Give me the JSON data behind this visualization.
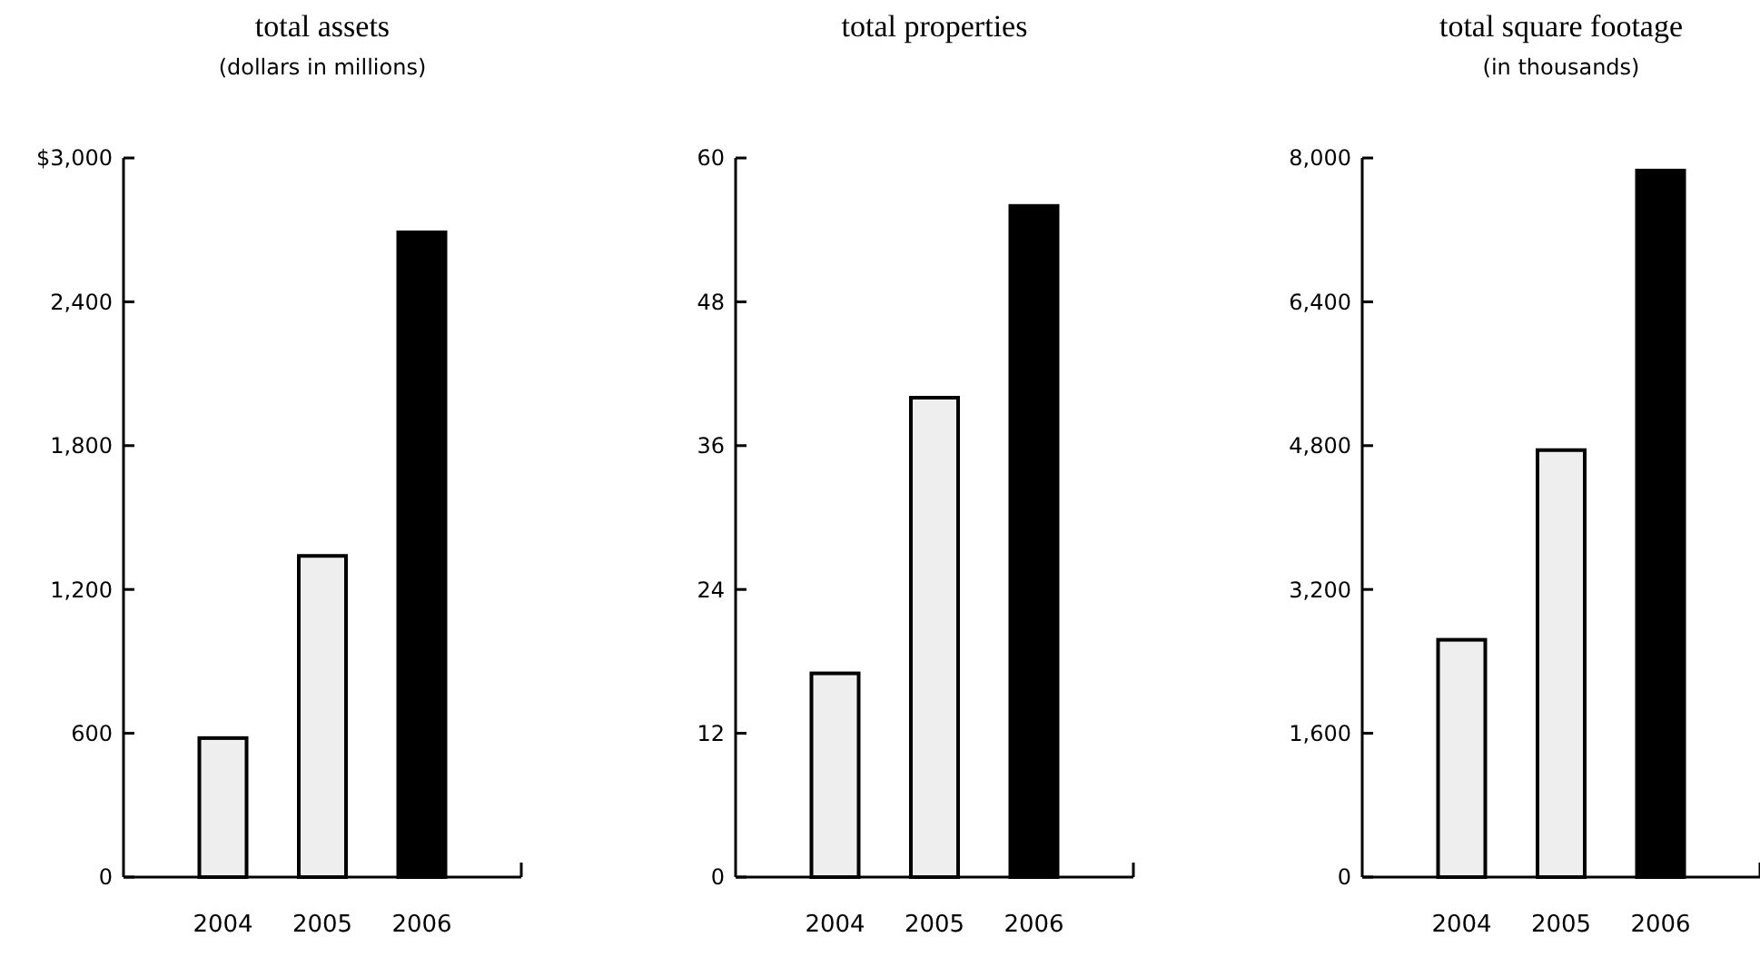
{
  "chart_data": [
    {
      "type": "bar",
      "title": "total assets",
      "subtitle": "(dollars in millions)",
      "categories": [
        "2004",
        "2005",
        "2006"
      ],
      "values": [
        580,
        1340,
        2690
      ],
      "colors": [
        "#eeeeee",
        "#eeeeee",
        "#000000"
      ],
      "ylim": [
        0,
        3000
      ],
      "yticks": [
        0,
        600,
        {
          "value": 1200,
          "label": "1,200"
        },
        {
          "value": 1800,
          "label": "1,800"
        },
        {
          "value": 2400,
          "label": "2,400"
        },
        {
          "value": 3000,
          "label": "$3,000"
        }
      ],
      "grid": false
    },
    {
      "type": "bar",
      "title": "total properties",
      "categories": [
        "2004",
        "2005",
        "2006"
      ],
      "values": [
        17,
        40,
        56
      ],
      "colors": [
        "#eeeeee",
        "#eeeeee",
        "#000000"
      ],
      "ylim": [
        0,
        60
      ],
      "yticks": [
        0,
        12,
        24,
        36,
        48,
        60
      ],
      "grid": false
    },
    {
      "type": "bar",
      "title": "total square footage",
      "subtitle": "(in thousands)",
      "categories": [
        "2004",
        "2005",
        "2006"
      ],
      "values": [
        2640,
        4750,
        7860
      ],
      "colors": [
        "#eeeeee",
        "#eeeeee",
        "#000000"
      ],
      "ylim": [
        0,
        8000
      ],
      "yticks": [
        0,
        {
          "value": 1600,
          "label": "1,600"
        },
        {
          "value": 3200,
          "label": "3,200"
        },
        {
          "value": 4800,
          "label": "4,800"
        },
        {
          "value": 6400,
          "label": "6,400"
        },
        {
          "value": 8000,
          "label": "8,000"
        }
      ],
      "grid": false
    }
  ]
}
